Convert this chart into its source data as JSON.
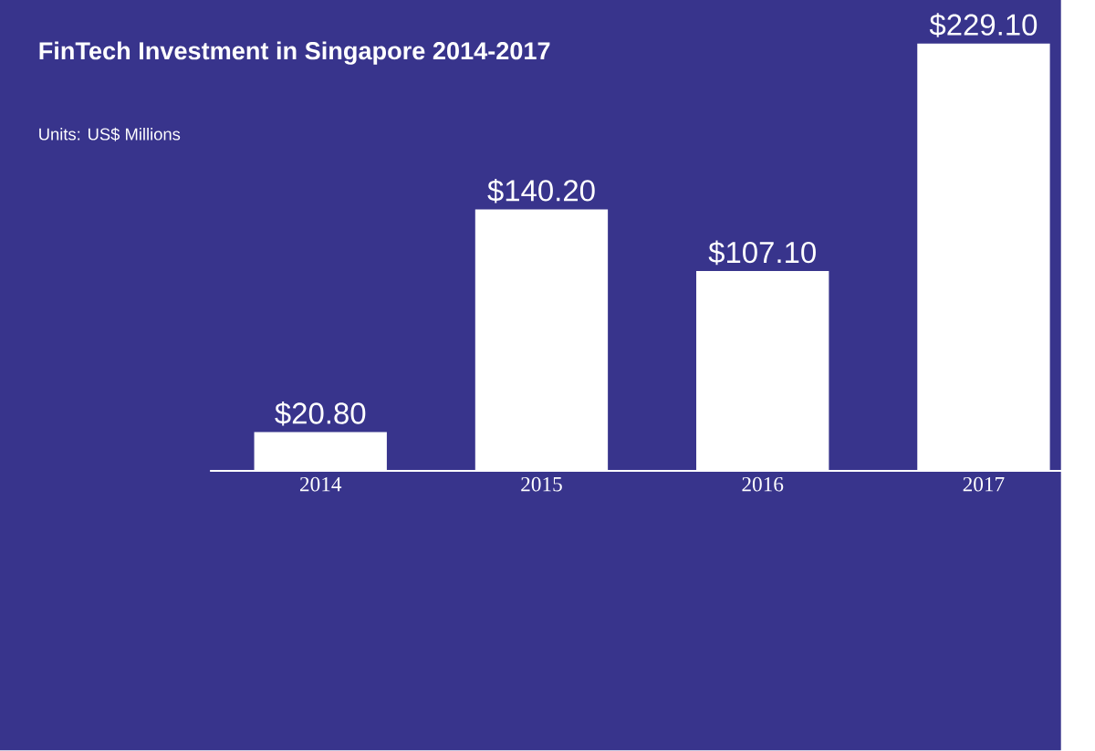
{
  "chart_data": {
    "type": "bar",
    "title": "FinTech Investment in Singapore 2014-2017",
    "subtitle": "Units: US$ Millions",
    "categories": [
      "2014",
      "2015",
      "2016",
      "2017"
    ],
    "values": [
      20.8,
      140.2,
      107.1,
      229.1
    ],
    "value_labels": [
      "$20.80",
      "$140.20",
      "$107.10",
      "$229.10"
    ],
    "color": "#ffffff"
  }
}
